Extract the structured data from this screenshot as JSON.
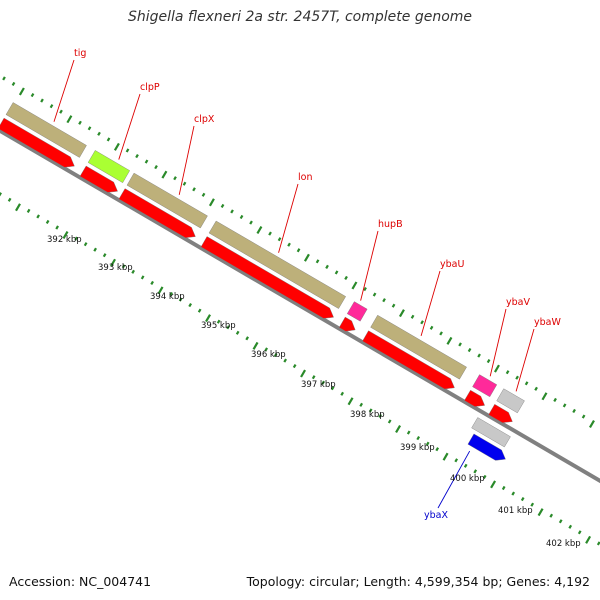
{
  "title": "Shigella flexneri 2a str. 2457T, complete genome",
  "footer": {
    "accession": "Accession: NC_004741",
    "summary": "Topology: circular; Length: 4,599,354 bp; Genes: 4,192"
  },
  "colors": {
    "backbone": "#808080",
    "tick_green": "#2a8a2a",
    "cds_red": "#ff0000",
    "khaki": "#bdb07a",
    "magenta": "#ff2a9a",
    "lime": "#aaff33",
    "gray_feature": "#c8c8c8",
    "blue_feature": "#0000ee",
    "label_red": "#dd0000",
    "label_blue": "#0000cc"
  },
  "scale_labels": [
    "392 kbp",
    "393 kbp",
    "394 kbp",
    "395 kbp",
    "396 kbp",
    "397 kbp",
    "398 kbp",
    "399 kbp",
    "400 kbp",
    "401 kbp",
    "402 kbp"
  ],
  "genes": [
    {
      "name": "tig",
      "color": "red"
    },
    {
      "name": "clpP",
      "color": "red"
    },
    {
      "name": "clpX",
      "color": "red"
    },
    {
      "name": "lon",
      "color": "red"
    },
    {
      "name": "hupB",
      "color": "red"
    },
    {
      "name": "ybaU",
      "color": "red"
    },
    {
      "name": "ybaV",
      "color": "red"
    },
    {
      "name": "ybaW",
      "color": "red"
    },
    {
      "name": "ybaX",
      "color": "blue"
    }
  ]
}
